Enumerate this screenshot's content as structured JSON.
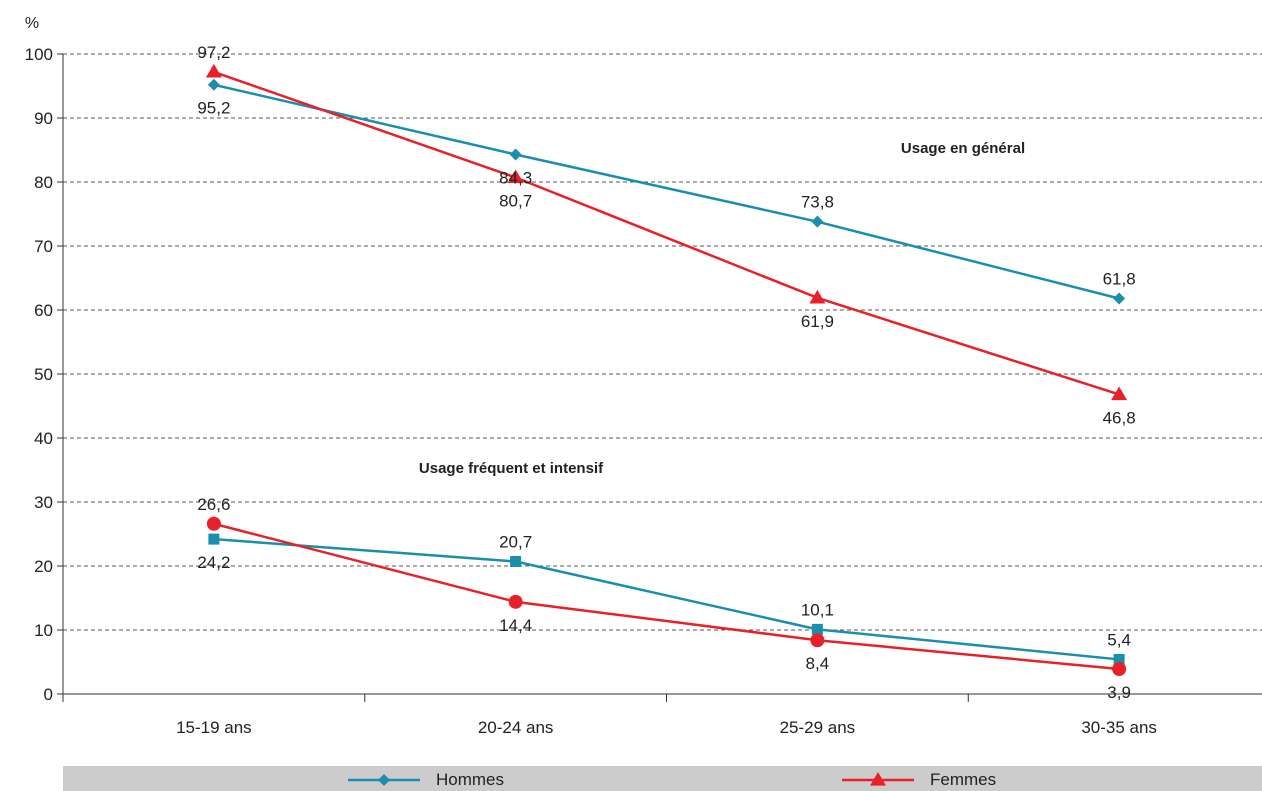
{
  "chart_data": {
    "type": "line",
    "unit_label": "%",
    "categories": [
      "15-19 ans",
      "20-24 ans",
      "25-29 ans",
      "30-35 ans"
    ],
    "ylim": [
      0,
      100
    ],
    "yticks": [
      0,
      10,
      20,
      30,
      40,
      50,
      60,
      70,
      80,
      90,
      100
    ],
    "grid": "horizontal-dashed",
    "groups": [
      {
        "annotation": "Usage en général",
        "series": [
          {
            "name": "Hommes",
            "values": [
              95.2,
              84.3,
              73.8,
              61.8
            ],
            "labels": [
              "95,2",
              "84,3",
              "73,8",
              "61,8"
            ],
            "color": "#1a8fad",
            "marker": "diamond"
          },
          {
            "name": "Femmes",
            "values": [
              97.2,
              80.7,
              61.9,
              46.8
            ],
            "labels": [
              "97,2",
              "80,7",
              "61,9",
              "46,8"
            ],
            "color": "#e8202a",
            "marker": "triangle"
          }
        ]
      },
      {
        "annotation": "Usage fréquent et intensif",
        "series": [
          {
            "name": "Hommes",
            "values": [
              24.2,
              20.7,
              10.1,
              5.4
            ],
            "labels": [
              "24,2",
              "20,7",
              "10,1",
              "5,4"
            ],
            "color": "#1a8fad",
            "marker": "square"
          },
          {
            "name": "Femmes",
            "values": [
              26.6,
              14.4,
              8.4,
              3.9
            ],
            "labels": [
              "26,6",
              "14,4",
              "8,4",
              "3,9"
            ],
            "color": "#e8202a",
            "marker": "circle"
          }
        ]
      }
    ],
    "legend": {
      "position": "bottom",
      "items": [
        {
          "label": "Hommes",
          "color": "#1a8fad",
          "marker": "diamond"
        },
        {
          "label": "Femmes",
          "color": "#e8202a",
          "marker": "triangle"
        }
      ]
    }
  }
}
